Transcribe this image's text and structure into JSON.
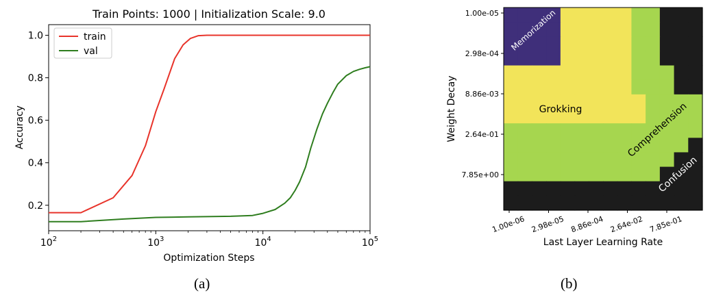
{
  "chart_data": [
    {
      "type": "line",
      "title": "Train Points: 1000 | Initialization Scale: 9.0",
      "xlabel": "Optimization Steps",
      "ylabel": "Accuracy",
      "x_scale": "log",
      "xlim": [
        100,
        100000
      ],
      "ylim": [
        0.08,
        1.05
      ],
      "xticks": [
        {
          "value": 100,
          "base": "10",
          "exp": "2"
        },
        {
          "value": 1000,
          "base": "10",
          "exp": "3"
        },
        {
          "value": 10000,
          "base": "10",
          "exp": "4"
        },
        {
          "value": 100000,
          "base": "10",
          "exp": "5"
        }
      ],
      "yticks": [
        0.2,
        0.4,
        0.6,
        0.8,
        1.0
      ],
      "ytick_labels": [
        "0.2",
        "0.4",
        "0.6",
        "0.8",
        "1.0"
      ],
      "grid": false,
      "legend": "top-left",
      "series": [
        {
          "name": "train",
          "color": "#e8332a",
          "x": [
            100,
            200,
            400,
            600,
            800,
            1000,
            1200,
            1500,
            1800,
            2100,
            2500,
            3000,
            5000,
            10000,
            30000,
            100000
          ],
          "y": [
            0.165,
            0.165,
            0.235,
            0.34,
            0.48,
            0.64,
            0.75,
            0.89,
            0.955,
            0.985,
            0.998,
            1.0,
            1.0,
            1.0,
            1.0,
            1.0
          ]
        },
        {
          "name": "val",
          "color": "#2e7d1e",
          "x": [
            100,
            200,
            500,
            1000,
            2000,
            5000,
            8000,
            10000,
            13000,
            16000,
            18000,
            20000,
            22000,
            25000,
            28000,
            32000,
            36000,
            40000,
            45000,
            50000,
            60000,
            70000,
            80000,
            90000,
            100000
          ],
          "y": [
            0.123,
            0.123,
            0.135,
            0.143,
            0.145,
            0.148,
            0.152,
            0.162,
            0.18,
            0.21,
            0.235,
            0.27,
            0.31,
            0.38,
            0.47,
            0.56,
            0.63,
            0.68,
            0.73,
            0.77,
            0.81,
            0.83,
            0.84,
            0.847,
            0.852
          ]
        }
      ]
    },
    {
      "type": "heatmap",
      "xlabel": "Last Layer Learning Rate",
      "ylabel": "Weight Decay",
      "xtick_labels": [
        "1.00e-06",
        "2.98e-05",
        "8.86e-04",
        "2.64e-02",
        "7.85e-01"
      ],
      "ytick_labels": [
        "1.00e-05",
        "2.98e-04",
        "8.86e-03",
        "2.64e-01",
        "7.85e+00"
      ],
      "n_cols": 14,
      "n_rows": 14,
      "phases": [
        {
          "name": "Memorization",
          "color": "#3f2f7a"
        },
        {
          "name": "Grokking",
          "color": "#f2e45a"
        },
        {
          "name": "Comprehension",
          "color": "#a6d64f"
        },
        {
          "name": "Confusion",
          "color": "#1c1c1c"
        }
      ],
      "grid_phases": [
        "MMMMGGGGGCCKKK",
        "MMMMGGGGGCCKKK",
        "MMMMGGGGGCCKKK",
        "MMMMGGGGGCCKKK",
        "GGGGGGGGGCCCKK",
        "GGGGGGGGGCCCKK",
        "GGGGGGGGGGCCCC",
        "GGGGGGGGGGCCCC",
        "CCCCCCCCCCCCCC",
        "CCCCCCCCCCCCCK",
        "CCCCCCCCCCCCKK",
        "CCCCCCCCCCCKKK",
        "KKKKKKKKKKKKKK",
        "KKKKKKKKKKKKKK"
      ],
      "annotations": [
        {
          "text": "Memorization",
          "color": "#ffffff"
        },
        {
          "text": "Grokking",
          "color": "#000000"
        },
        {
          "text": "Comprehension",
          "color": "#000000"
        },
        {
          "text": "Confusion",
          "color": "#ffffff"
        }
      ]
    }
  ],
  "captions": {
    "a": "(a)",
    "b": "(b)"
  }
}
